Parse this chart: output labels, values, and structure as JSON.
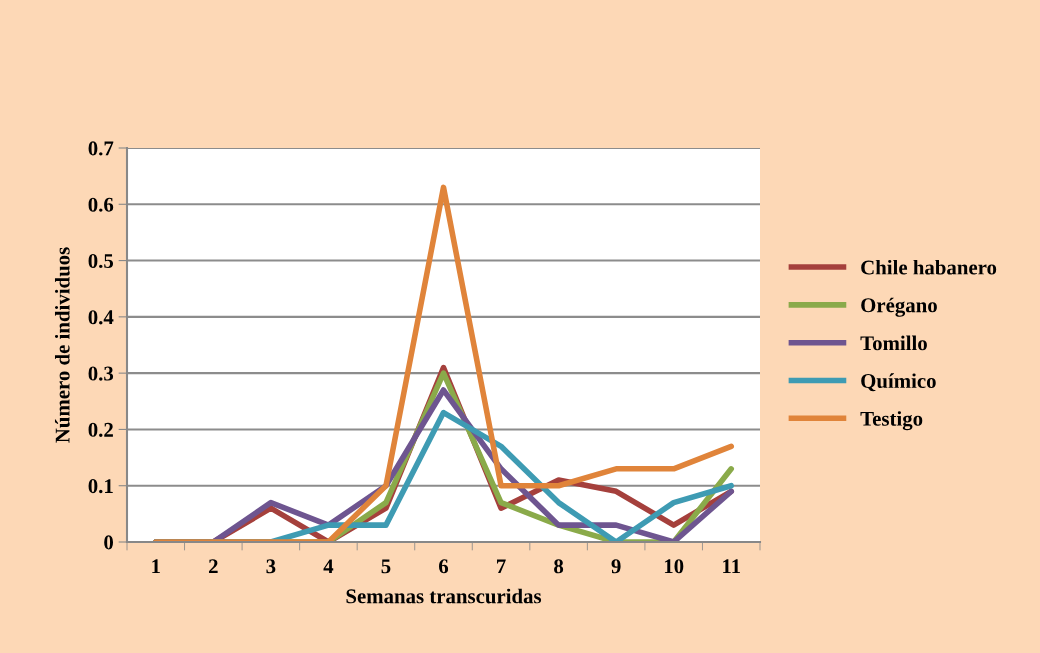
{
  "chart_data": {
    "type": "line",
    "xlabel": "Semanas transcuridas",
    "ylabel": "Número de individuos",
    "categories": [
      "1",
      "2",
      "3",
      "4",
      "5",
      "6",
      "7",
      "8",
      "9",
      "10",
      "11"
    ],
    "ylim": [
      0,
      0.7
    ],
    "yticks": [
      {
        "value": 0,
        "label": "0"
      },
      0.1,
      0.2,
      0.3,
      0.4,
      0.5,
      0.6,
      0.7
    ],
    "grid": "y",
    "legend": "right",
    "marker": "none",
    "line_style": "solid",
    "series": [
      {
        "name": "Chile habanero",
        "color": "#a5403c",
        "values": [
          0,
          0,
          0.06,
          0,
          0.06,
          0.31,
          0.06,
          0.11,
          0.09,
          0.03,
          0.09
        ]
      },
      {
        "name": "Orégano",
        "color": "#8aaa4a",
        "values": [
          0,
          0,
          0,
          0,
          0.07,
          0.3,
          0.07,
          0.03,
          0,
          0,
          0.13
        ]
      },
      {
        "name": "Tomillo",
        "color": "#6e5590",
        "values": [
          0,
          0,
          0.07,
          0.03,
          0.1,
          0.27,
          0.13,
          0.03,
          0.03,
          0,
          0.09
        ]
      },
      {
        "name": "Químico",
        "color": "#3e9bb3",
        "values": [
          0,
          0,
          0,
          0.03,
          0.03,
          0.23,
          0.17,
          0.07,
          0,
          0.07,
          0.1
        ]
      },
      {
        "name": "Testigo",
        "color": "#e0843a",
        "values": [
          0,
          0,
          0,
          0,
          0.1,
          0.63,
          0.1,
          0.1,
          0.13,
          0.13,
          0.17
        ]
      }
    ]
  }
}
